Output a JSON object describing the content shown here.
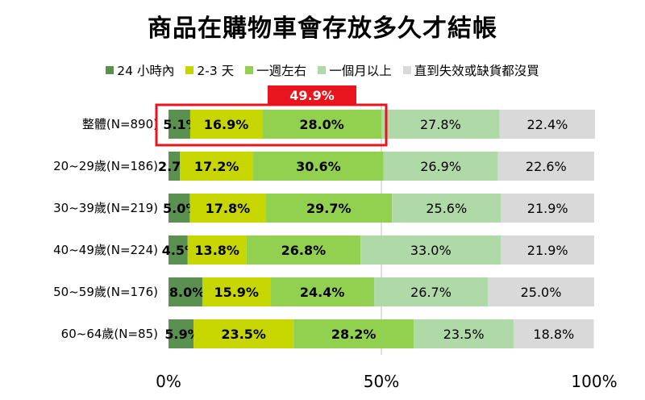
{
  "header": {
    "title": "商品在購物車會存放多久才結帳"
  },
  "colors": {
    "within_24h": "#5a9150",
    "days_2_3": "#c8d600",
    "one_week": "#92d050",
    "over_month": "#b0d9a8",
    "never": "#d9d9d9",
    "highlight": "#e8141e",
    "gridline": "#bfbfbf"
  },
  "chart_data": {
    "type": "bar",
    "orientation": "horizontal",
    "stacked": true,
    "title": "商品在購物車會存放多久才結帳",
    "categories": [
      "整體(N=890)",
      "20~29歲(N=186)",
      "30~39歲(N=219)",
      "40~49歲(N=224)",
      "50~59歲(N=176)",
      "60~64歲(N=85)"
    ],
    "series": [
      {
        "name": "24 小時內",
        "values": [
          5.1,
          2.7,
          5.0,
          4.5,
          8.0,
          5.9
        ],
        "labels": [
          "5.1%",
          "2.7%",
          "5.0%",
          "4.5%",
          "8.0%",
          "5.9%"
        ],
        "label_bold": true
      },
      {
        "name": "2-3 天",
        "values": [
          16.9,
          17.2,
          17.8,
          13.8,
          15.9,
          23.5
        ],
        "labels": [
          "16.9%",
          "17.2%",
          "17.8%",
          "13.8%",
          "15.9%",
          "23.5%"
        ],
        "label_bold": true
      },
      {
        "name": "一週左右",
        "values": [
          28.0,
          30.6,
          29.7,
          26.8,
          24.4,
          28.2
        ],
        "labels": [
          "28.0%",
          "30.6%",
          "29.7%",
          "26.8%",
          "24.4%",
          "28.2%"
        ],
        "label_bold": true
      },
      {
        "name": "一個月以上",
        "values": [
          27.8,
          26.9,
          25.6,
          33.0,
          26.7,
          23.5
        ],
        "labels": [
          "27.8%",
          "26.9%",
          "25.6%",
          "33.0%",
          "26.7%",
          "23.5%"
        ],
        "label_bold": false
      },
      {
        "name": "直到失效或缺貨都沒買",
        "values": [
          22.4,
          22.6,
          21.9,
          21.9,
          25.0,
          18.8
        ],
        "labels": [
          "22.4%",
          "22.6%",
          "21.9%",
          "21.9%",
          "25.0%",
          "18.8%"
        ],
        "label_bold": false
      }
    ],
    "x_ticks": [
      "0%",
      "50%",
      "100%"
    ],
    "xlim": [
      0,
      100
    ],
    "grid": "vertical gridline at 50%",
    "legend": "top",
    "annotation": {
      "text": "49.9%",
      "category": "整體(N=890)",
      "covers_series": [
        "24 小時內",
        "2-3 天",
        "一週左右"
      ]
    }
  }
}
